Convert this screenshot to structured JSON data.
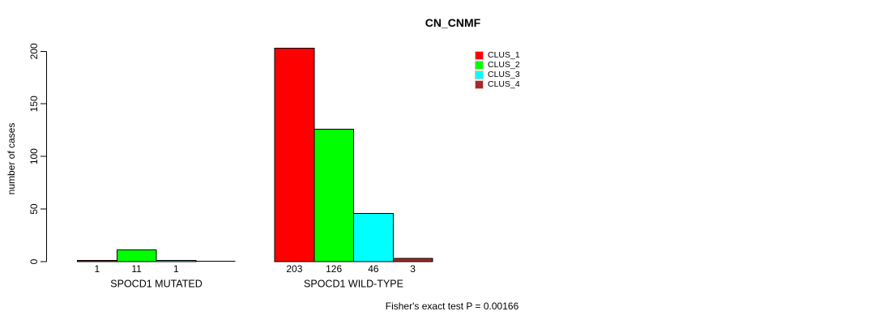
{
  "chart_data": {
    "type": "bar",
    "title": "CN_CNMF",
    "ylabel": "number of cases",
    "xlabel": "",
    "ylim": [
      0,
      200
    ],
    "yticks": [
      0,
      50,
      100,
      150,
      200
    ],
    "grid": false,
    "legend_position": "top-right",
    "categories": [
      "SPOCD1 MUTATED",
      "SPOCD1 WILD-TYPE"
    ],
    "series": [
      {
        "name": "CLUS_1",
        "color": "#ff0000",
        "values": [
          1,
          203
        ]
      },
      {
        "name": "CLUS_2",
        "color": "#00ff00",
        "values": [
          11,
          126
        ]
      },
      {
        "name": "CLUS_3",
        "color": "#00ffff",
        "values": [
          1,
          46
        ]
      },
      {
        "name": "CLUS_4",
        "color": "#a52a2a",
        "values": [
          0,
          3
        ]
      }
    ],
    "bar_value_labels": [
      [
        "1",
        "11",
        "1",
        ""
      ],
      [
        "203",
        "126",
        "46",
        "3"
      ]
    ],
    "footer": "Fisher's exact test P = 0.00166"
  }
}
